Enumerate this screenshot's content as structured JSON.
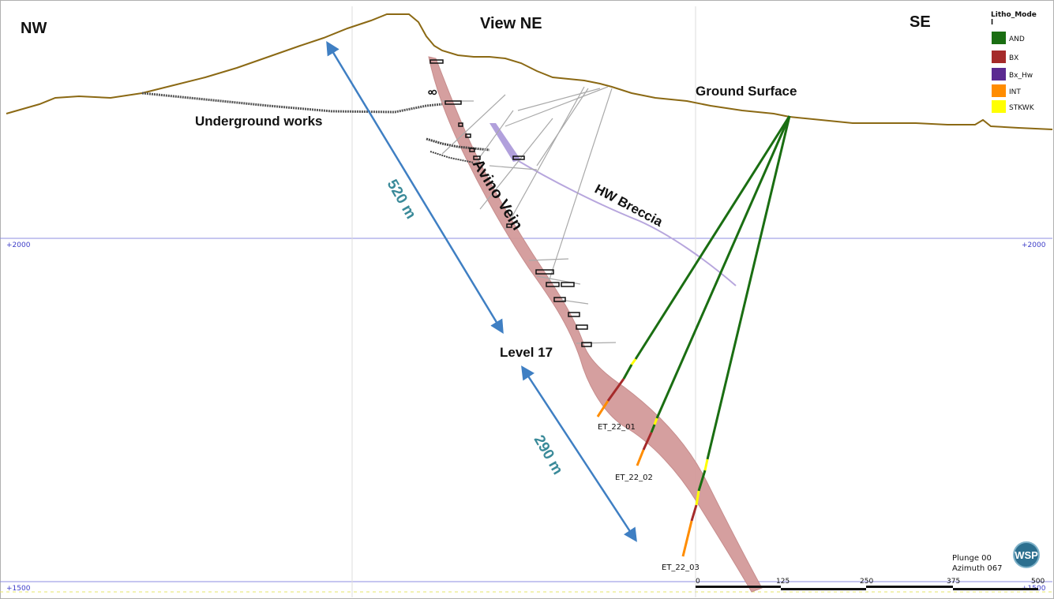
{
  "orientation": {
    "left": "NW",
    "center": "View NE",
    "right": "SE"
  },
  "labels": {
    "ground_surface": "Ground Surface",
    "underground_works": "Underground works",
    "avino_vein": "Avino Vein",
    "hw_breccia": "HW Breccia",
    "level": "Level 17",
    "dist_520": "520 m",
    "dist_290": "290 m"
  },
  "drillholes": [
    {
      "id": "ET_22_01"
    },
    {
      "id": "ET_22_02"
    },
    {
      "id": "ET_22_03"
    }
  ],
  "grid": {
    "upper": "+2000",
    "lower": "+1500"
  },
  "scale_bar": [
    "0",
    "125",
    "250",
    "375",
    "500"
  ],
  "view_info": {
    "plunge": "Plunge 00",
    "azimuth": "Azimuth 067"
  },
  "logo_text": "WSP",
  "legend": {
    "title_line1": "Litho_Mode",
    "title_line2": "l",
    "items": [
      {
        "name": "AND",
        "color": "#1a6e12"
      },
      {
        "name": "BX",
        "color": "#a52a2a"
      },
      {
        "name": "Bx_Hw",
        "color": "#5b2a91"
      },
      {
        "name": "INT",
        "color": "#ff8c00"
      },
      {
        "name": "STKWK",
        "color": "#ffff00"
      }
    ]
  },
  "colors": {
    "topography": "#8b6914",
    "vein_fill": "#d39a9a",
    "breccia": "#b7a6dd",
    "arrow": "#3f7fc3",
    "grid_line": "#7c7cd6"
  }
}
